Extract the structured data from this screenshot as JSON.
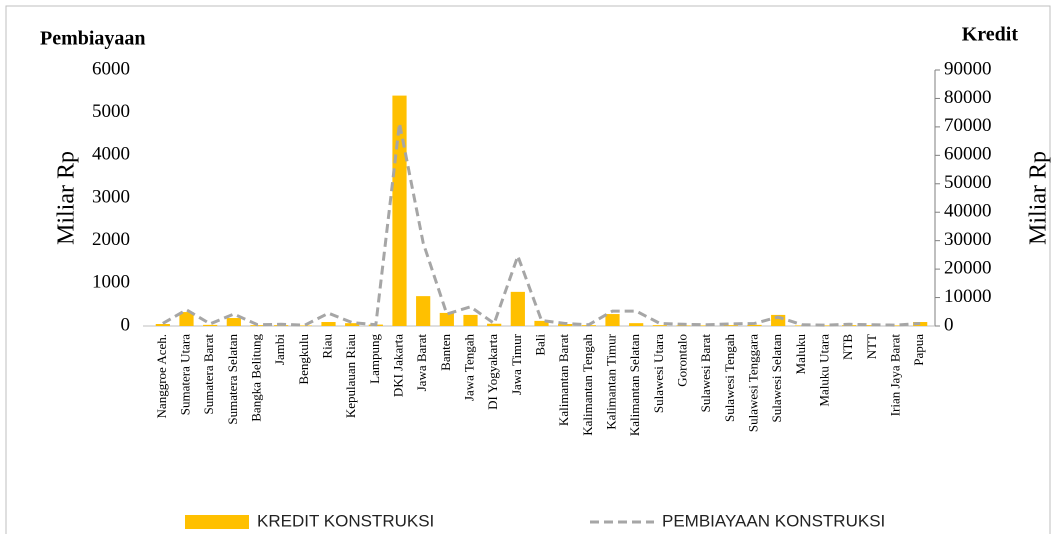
{
  "chart_data": {
    "type": "bar_line",
    "y_title": "Pembiayaan",
    "y2_title": "Kredit",
    "y_label": "Miliar Rp",
    "y2_label": "Miliar Rp",
    "categories": [
      "Nanggroe Aceh.",
      "Sumatera Utara",
      "Sumatera Barat",
      "Sumatera Selatan",
      "Bangka Belitung",
      "Jambi",
      "Bengkulu",
      "Riau",
      "Kepulauan Riau",
      "Lampung",
      "DKI Jakarta",
      "Jawa Barat",
      "Banten",
      "Jawa Tengah",
      "DI Yogyakarta",
      "Jawa Timur",
      "Bali",
      "Kalimantan Barat",
      "Kalimantan Tengah",
      "Kalimantan Timur",
      "Kalimantan Selatan",
      "Sulawesi Utara",
      "Gorontalo",
      "Sulawesi Barat",
      "Sulawesi Tengah",
      "Sulawesi Tenggara",
      "Sulawesi Selatan",
      "Maluku",
      "Maluku Utara",
      "NTB",
      "NTT",
      "Irian Jaya Barat",
      "Papua"
    ],
    "series": [
      {
        "name": "KREDIT KONSTRUKSI",
        "kind": "bar",
        "axis": "y2",
        "color": "#ffc000",
        "values": [
          700,
          4900,
          400,
          2800,
          300,
          300,
          200,
          1400,
          1000,
          500,
          81000,
          10500,
          4600,
          3900,
          800,
          12000,
          1800,
          700,
          300,
          4200,
          1000,
          300,
          200,
          200,
          300,
          400,
          3900,
          200,
          200,
          300,
          300,
          200,
          1400
        ]
      },
      {
        "name": "PEMBIAYAAN KONSTRUKSI",
        "kind": "line",
        "axis": "y",
        "color": "#a6a6a6",
        "values": [
          60,
          380,
          50,
          280,
          30,
          40,
          20,
          300,
          80,
          30,
          4750,
          1950,
          280,
          450,
          60,
          1640,
          130,
          60,
          30,
          350,
          350,
          60,
          40,
          30,
          50,
          60,
          210,
          30,
          20,
          40,
          30,
          20,
          60
        ]
      }
    ],
    "ylim": [
      0,
      6000
    ],
    "yticks": [
      0,
      1000,
      2000,
      3000,
      4000,
      5000,
      6000
    ],
    "y2lim": [
      0,
      90000
    ],
    "y2ticks": [
      0,
      10000,
      20000,
      30000,
      40000,
      50000,
      60000,
      70000,
      80000,
      90000
    ]
  }
}
